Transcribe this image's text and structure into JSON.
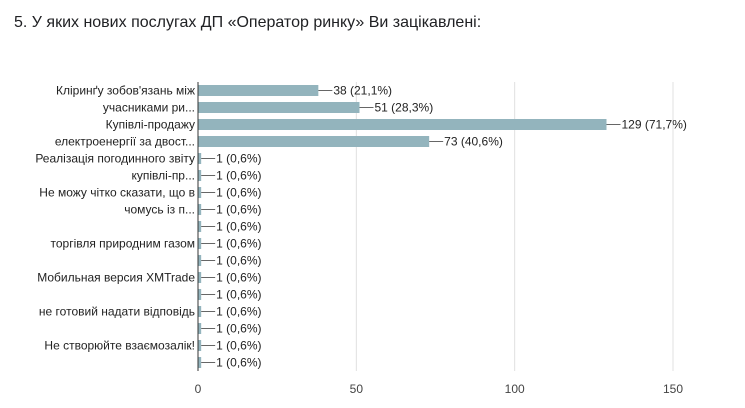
{
  "question": {
    "title": "5. У яких нових послугах ДП «Оператор ринку» Ви зацікавлені:"
  },
  "chart_data": {
    "type": "bar",
    "orientation": "horizontal",
    "title": "",
    "xlabel": "",
    "ylabel": "",
    "xlim": [
      0,
      150
    ],
    "x_ticks": [
      0,
      50,
      100,
      150
    ],
    "grid": true,
    "bar_color": "#93B4BD",
    "category_label_lines": [
      [
        "Кліринґу зобов'язань між"
      ],
      [
        "учасниками ри..."
      ],
      [
        "Купівлі-продажу"
      ],
      [
        "електроенергії за двост..."
      ],
      [
        "Реалізація погодинного звіту"
      ],
      [
        "купівлі-пр..."
      ],
      [
        "Не можу чітко сказати, що в"
      ],
      [
        "чомусь із п..."
      ],
      [
        ""
      ],
      [
        "торгівля природним газом"
      ],
      [
        ""
      ],
      [
        "Мобильная версия XMTrade"
      ],
      [
        ""
      ],
      [
        "не готовий надати відповідь"
      ],
      [
        ""
      ],
      [
        "Не створюйте взаємозалік!"
      ],
      [
        ""
      ]
    ],
    "values": [
      38,
      51,
      129,
      73,
      1,
      1,
      1,
      1,
      1,
      1,
      1,
      1,
      1,
      1,
      1,
      1,
      1
    ],
    "value_labels": [
      "38 (21,1%)",
      "51 (28,3%)",
      "129 (71,7%)",
      "73 (40,6%)",
      "1 (0,6%)",
      "1 (0,6%)",
      "1 (0,6%)",
      "1 (0,6%)",
      "1 (0,6%)",
      "1 (0,6%)",
      "1 (0,6%)",
      "1 (0,6%)",
      "1 (0,6%)",
      "1 (0,6%)",
      "1 (0,6%)",
      "1 (0,6%)",
      "1 (0,6%)"
    ]
  }
}
